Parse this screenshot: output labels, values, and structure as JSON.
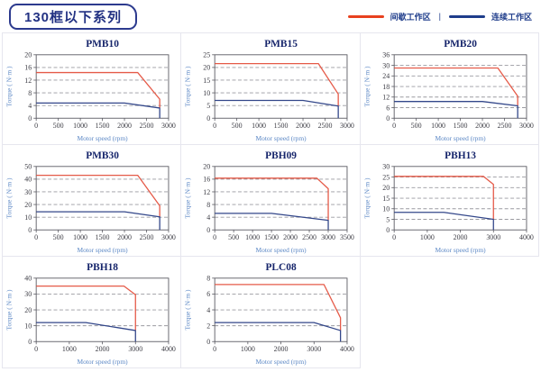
{
  "header": {
    "title": "130框以下系列",
    "legend": [
      {
        "label": "间歇工作区",
        "role": "intermittent"
      },
      {
        "label": "连续工作区",
        "role": "continuous"
      }
    ],
    "legend_separator": "|"
  },
  "colors": {
    "legend_intermittent": "#e8411f",
    "legend_continuous": "#1f3d8b",
    "curve_intermittent": "#e55a48",
    "curve_continuous": "#33478a",
    "chart_title": "#16256b",
    "axis_label": "#5b87c5",
    "tick_label": "#3c3c44",
    "gridline": "#9a9aa0",
    "plot_border": "#5a5a62",
    "panel_border": "#e6e6ee",
    "badge_border": "#2c3a8e",
    "badge_text": "#233283"
  },
  "chart_data": [
    {
      "type": "line",
      "title": "PMB10",
      "xlabel": "Motor speed (rpm)",
      "ylabel": "Torque ( N·m )",
      "xlim": [
        0,
        3000
      ],
      "ylim": [
        0,
        20
      ],
      "xticks": [
        0,
        500,
        1000,
        1500,
        2000,
        2500,
        3000
      ],
      "yticks": [
        0,
        4,
        8,
        12,
        16,
        20
      ],
      "grid": "horizontal-dashed",
      "legend_position": "none",
      "series": [
        {
          "name": "间歇工作区",
          "role": "intermittent",
          "points": [
            [
              0,
              14.4
            ],
            [
              2300,
              14.4
            ],
            [
              2800,
              6
            ],
            [
              2800,
              3.2
            ]
          ]
        },
        {
          "name": "连续工作区",
          "role": "continuous",
          "points": [
            [
              0,
              4.8
            ],
            [
              2000,
              4.8
            ],
            [
              2800,
              3.2
            ],
            [
              2800,
              0
            ]
          ]
        }
      ]
    },
    {
      "type": "line",
      "title": "PMB15",
      "xlabel": "Motor speed (rpm)",
      "ylabel": "Torque ( N·m )",
      "xlim": [
        0,
        3000
      ],
      "ylim": [
        0,
        25
      ],
      "xticks": [
        0,
        500,
        1000,
        1500,
        2000,
        2500,
        3000
      ],
      "yticks": [
        0,
        5,
        10,
        15,
        20,
        25
      ],
      "grid": "horizontal-dashed",
      "legend_position": "none",
      "series": [
        {
          "name": "间歇工作区",
          "role": "intermittent",
          "points": [
            [
              0,
              21.5
            ],
            [
              2350,
              21.5
            ],
            [
              2800,
              9.5
            ],
            [
              2800,
              4.8
            ]
          ]
        },
        {
          "name": "连续工作区",
          "role": "continuous",
          "points": [
            [
              0,
              7
            ],
            [
              2000,
              7
            ],
            [
              2800,
              4.8
            ],
            [
              2800,
              0
            ]
          ]
        }
      ]
    },
    {
      "type": "line",
      "title": "PMB20",
      "xlabel": "Motor speed (rpm)",
      "ylabel": "Torque ( N·m )",
      "xlim": [
        0,
        3000
      ],
      "ylim": [
        0,
        36
      ],
      "xticks": [
        0,
        500,
        1000,
        1500,
        2000,
        2500,
        3000
      ],
      "yticks": [
        0,
        6,
        12,
        18,
        24,
        30,
        36
      ],
      "grid": "horizontal-dashed",
      "legend_position": "none",
      "series": [
        {
          "name": "间歇工作区",
          "role": "intermittent",
          "points": [
            [
              0,
              28.5
            ],
            [
              2350,
              28.5
            ],
            [
              2800,
              12.5
            ],
            [
              2800,
              7
            ]
          ]
        },
        {
          "name": "连续工作区",
          "role": "continuous",
          "points": [
            [
              0,
              9.5
            ],
            [
              2000,
              9.5
            ],
            [
              2800,
              7
            ],
            [
              2800,
              0
            ]
          ]
        }
      ]
    },
    {
      "type": "line",
      "title": "PMB30",
      "xlabel": "Motor speed (rpm)",
      "ylabel": "Torque ( N·m )",
      "xlim": [
        0,
        3000
      ],
      "ylim": [
        0,
        50
      ],
      "xticks": [
        0,
        500,
        1000,
        1500,
        2000,
        2500,
        3000
      ],
      "yticks": [
        0,
        10,
        20,
        30,
        40,
        50
      ],
      "grid": "horizontal-dashed",
      "legend_position": "none",
      "series": [
        {
          "name": "间歇工作区",
          "role": "intermittent",
          "points": [
            [
              0,
              43
            ],
            [
              2300,
              43
            ],
            [
              2800,
              19
            ],
            [
              2800,
              10.3
            ]
          ]
        },
        {
          "name": "连续工作区",
          "role": "continuous",
          "points": [
            [
              0,
              14.3
            ],
            [
              2000,
              14.3
            ],
            [
              2800,
              10.3
            ],
            [
              2800,
              0
            ]
          ]
        }
      ]
    },
    {
      "type": "line",
      "title": "PBH09",
      "xlabel": "Motor speed (rpm)",
      "ylabel": "Torque ( N·m )",
      "xlim": [
        0,
        3500
      ],
      "ylim": [
        0,
        20
      ],
      "xticks": [
        0,
        500,
        1000,
        1500,
        2000,
        2500,
        3000,
        3500
      ],
      "yticks": [
        0,
        4,
        8,
        12,
        16,
        20
      ],
      "grid": "horizontal-dashed",
      "legend_position": "none",
      "series": [
        {
          "name": "间歇工作区",
          "role": "intermittent",
          "points": [
            [
              0,
              16.3
            ],
            [
              2700,
              16.3
            ],
            [
              3000,
              13
            ],
            [
              3000,
              3
            ]
          ]
        },
        {
          "name": "连续工作区",
          "role": "continuous",
          "points": [
            [
              0,
              5.2
            ],
            [
              1500,
              5.2
            ],
            [
              3000,
              3
            ],
            [
              3000,
              0
            ]
          ]
        }
      ]
    },
    {
      "type": "line",
      "title": "PBH13",
      "xlabel": "Motor speed (rpm)",
      "ylabel": "Torque ( N·m )",
      "xlim": [
        0,
        4000
      ],
      "ylim": [
        0,
        30
      ],
      "xticks": [
        0,
        1000,
        2000,
        3000,
        4000
      ],
      "yticks": [
        0,
        5,
        10,
        15,
        20,
        25,
        30
      ],
      "grid": "horizontal-dashed",
      "legend_position": "none",
      "series": [
        {
          "name": "间歇工作区",
          "role": "intermittent",
          "points": [
            [
              0,
              25.3
            ],
            [
              2700,
              25.3
            ],
            [
              3000,
              21.5
            ],
            [
              3000,
              5
            ]
          ]
        },
        {
          "name": "连续工作区",
          "role": "continuous",
          "points": [
            [
              0,
              8.3
            ],
            [
              1500,
              8.3
            ],
            [
              3000,
              5
            ],
            [
              3000,
              0
            ]
          ]
        }
      ]
    },
    {
      "type": "line",
      "title": "PBH18",
      "xlabel": "Motor speed (rpm)",
      "ylabel": "Torque ( N·m )",
      "xlim": [
        0,
        4000
      ],
      "ylim": [
        0,
        40
      ],
      "xticks": [
        0,
        1000,
        2000,
        3000,
        4000
      ],
      "yticks": [
        0,
        10,
        20,
        30,
        40
      ],
      "grid": "horizontal-dashed",
      "legend_position": "none",
      "series": [
        {
          "name": "间歇工作区",
          "role": "intermittent",
          "points": [
            [
              0,
              35
            ],
            [
              2650,
              35
            ],
            [
              3000,
              29.5
            ],
            [
              3000,
              7
            ]
          ]
        },
        {
          "name": "连续工作区",
          "role": "continuous",
          "points": [
            [
              0,
              12
            ],
            [
              1500,
              12
            ],
            [
              3000,
              7
            ],
            [
              3000,
              0
            ]
          ]
        }
      ]
    },
    {
      "type": "line",
      "title": "PLC08",
      "xlabel": "Motor speed (rpm)",
      "ylabel": "Torque ( N·m )",
      "xlim": [
        0,
        4000
      ],
      "ylim": [
        0,
        8
      ],
      "xticks": [
        0,
        1000,
        2000,
        3000,
        4000
      ],
      "yticks": [
        0,
        2,
        4,
        6,
        8
      ],
      "grid": "horizontal-dashed",
      "legend_position": "none",
      "series": [
        {
          "name": "间歇工作区",
          "role": "intermittent",
          "points": [
            [
              0,
              7.2
            ],
            [
              3300,
              7.2
            ],
            [
              3800,
              3
            ],
            [
              3800,
              1.4
            ]
          ]
        },
        {
          "name": "连续工作区",
          "role": "continuous",
          "points": [
            [
              0,
              2.4
            ],
            [
              3000,
              2.4
            ],
            [
              3800,
              1.4
            ],
            [
              3800,
              0
            ]
          ]
        }
      ]
    }
  ]
}
